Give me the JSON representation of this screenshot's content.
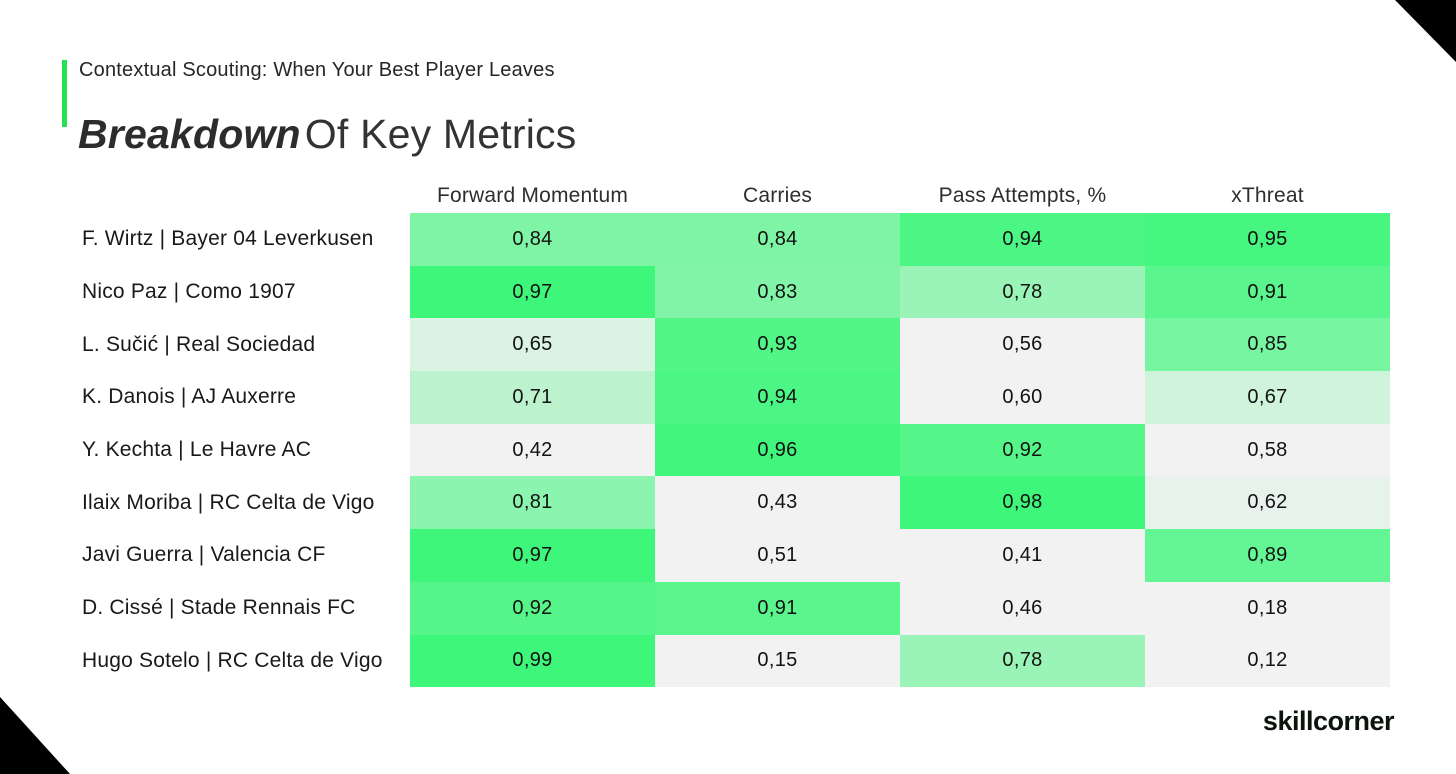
{
  "header": {
    "kicker": "Contextual Scouting: When Your Best Player Leaves",
    "title_emphasis": "Breakdown",
    "title_rest": "Of Key Metrics"
  },
  "colors": {
    "accent_green": "#22e452",
    "heatmap_low": "#f2f2f2",
    "heatmap_high": "#3df67a",
    "background": "#ffffff",
    "corner_black": "#000000"
  },
  "chart_data": {
    "type": "heatmap",
    "title": "Breakdown Of Key Metrics",
    "subtitle": "Contextual Scouting: When Your Best Player Leaves",
    "columns": [
      "Forward Momentum",
      "Carries",
      "Pass Attempts, %",
      "xThreat"
    ],
    "rows": [
      {
        "label": "F. Wirtz | Bayer 04 Leverkusen",
        "values": [
          0.84,
          0.84,
          0.94,
          0.95
        ]
      },
      {
        "label": "Nico Paz | Como 1907",
        "values": [
          0.97,
          0.83,
          0.78,
          0.91
        ]
      },
      {
        "label": "L. Sučić | Real Sociedad",
        "values": [
          0.65,
          0.93,
          0.56,
          0.85
        ]
      },
      {
        "label": "K. Danois | AJ Auxerre",
        "values": [
          0.71,
          0.94,
          0.6,
          0.67
        ]
      },
      {
        "label": "Y. Kechta | Le Havre AC",
        "values": [
          0.42,
          0.96,
          0.92,
          0.58
        ]
      },
      {
        "label": "Ilaix Moriba | RC Celta de Vigo",
        "values": [
          0.81,
          0.43,
          0.98,
          0.62
        ]
      },
      {
        "label": "Javi Guerra | Valencia CF",
        "values": [
          0.97,
          0.51,
          0.41,
          0.89
        ]
      },
      {
        "label": "D. Cissé | Stade Rennais FC",
        "values": [
          0.92,
          0.91,
          0.46,
          0.18
        ]
      },
      {
        "label": "Hugo Sotelo | RC Celta de Vigo",
        "values": [
          0.99,
          0.15,
          0.78,
          0.12
        ]
      }
    ],
    "value_format": "comma-decimal-2",
    "value_range": [
      0,
      1
    ],
    "colormap": {
      "low_color": "#f2f2f2",
      "high_color": "#3df67a",
      "ramp_start": 0.6,
      "ramp_end": 0.97
    },
    "legend": "none",
    "grid": false
  },
  "footer": {
    "logo_text": "skillcorner"
  }
}
